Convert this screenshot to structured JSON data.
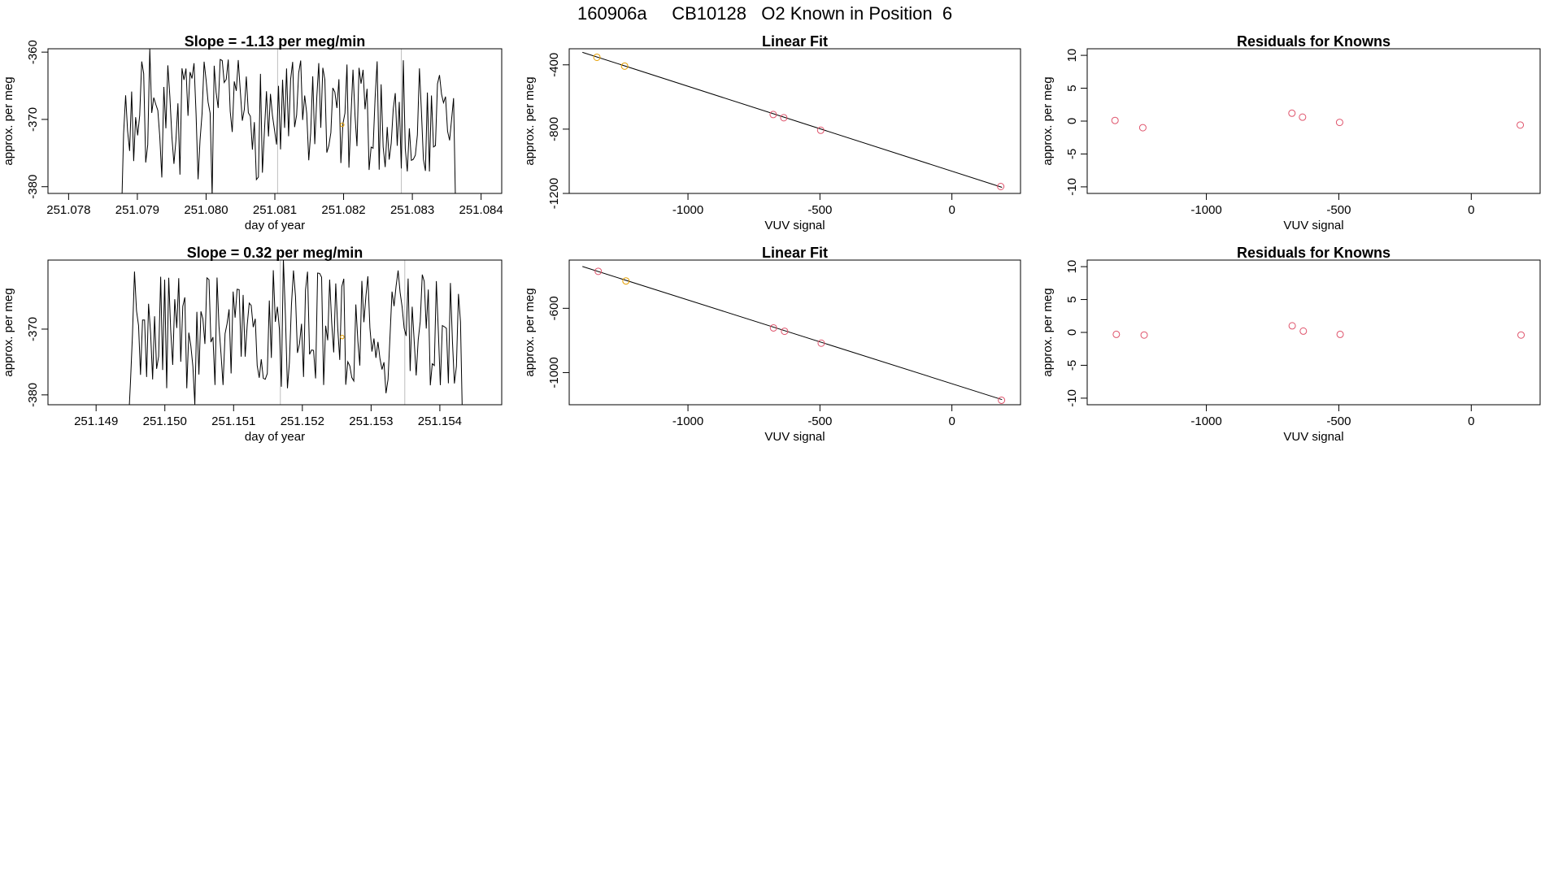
{
  "page_title": "160906a     CB10128   O2 Known in Position  6",
  "colors": {
    "trace": "#000000",
    "frame": "#000000",
    "marker_orange": "#E69F00",
    "marker_red": "#DF536B",
    "vline": "#BEBEBE",
    "fit_line": "#000000"
  },
  "chart_data": [
    {
      "id": "time1",
      "type": "line",
      "title": "Slope =  -1.13  per meg/min",
      "xlabel": "day of year",
      "ylabel": "approx. per meg",
      "xlim": [
        251.0777,
        251.0843
      ],
      "ylim": [
        -381,
        -359.5
      ],
      "xticks": [
        251.078,
        251.079,
        251.08,
        251.081,
        251.082,
        251.083,
        251.084
      ],
      "xtick_labels": [
        "251.078",
        "251.079",
        "251.080",
        "251.081",
        "251.082",
        "251.083",
        "251.084"
      ],
      "yticks": [
        -360,
        -370,
        -380
      ],
      "ytick_labels": [
        "-360",
        "-370",
        "-380"
      ],
      "vlines": [
        251.08104,
        251.08284
      ],
      "highlight_points": [
        {
          "x": 251.08198,
          "y": -370.8
        }
      ],
      "series": [
        {
          "name": "signal",
          "x_start": 251.0788,
          "x_end": 251.0836,
          "seed": 7
        }
      ]
    },
    {
      "id": "fit1",
      "type": "scatter",
      "title": "Linear Fit",
      "xlabel": "VUV signal",
      "ylabel": "approx. per meg",
      "xlim": [
        -1450,
        260
      ],
      "ylim": [
        -1200,
        -300
      ],
      "xticks": [
        -1000,
        -500,
        0
      ],
      "xtick_labels": [
        "-1000",
        "-500",
        "0"
      ],
      "yticks": [
        -400,
        -800,
        -1200
      ],
      "ytick_labels": [
        "-400",
        "-800",
        "-1200"
      ],
      "fit_line": {
        "x": [
          -1400,
          190
        ],
        "y": [
          -322,
          -1162
        ]
      },
      "points": [
        {
          "x": -1345,
          "y": -353,
          "color": "orange"
        },
        {
          "x": -1240,
          "y": -408,
          "color": "orange"
        },
        {
          "x": -677,
          "y": -709,
          "color": "red"
        },
        {
          "x": -637,
          "y": -729,
          "color": "red"
        },
        {
          "x": -497,
          "y": -807,
          "color": "red"
        },
        {
          "x": 185,
          "y": -1157,
          "color": "red"
        }
      ]
    },
    {
      "id": "res1",
      "type": "scatter",
      "title": "Residuals for Knowns",
      "xlabel": "VUV signal",
      "ylabel": "approx. per meg",
      "xlim": [
        -1450,
        260
      ],
      "ylim": [
        -11,
        11
      ],
      "xticks": [
        -1000,
        -500,
        0
      ],
      "xtick_labels": [
        "-1000",
        "-500",
        "0"
      ],
      "yticks": [
        10,
        5,
        0,
        -5,
        -10
      ],
      "ytick_labels": [
        "10",
        "5",
        "0",
        "-5",
        "-10"
      ],
      "points": [
        {
          "x": -1345,
          "y": 0.1
        },
        {
          "x": -1240,
          "y": -1.0
        },
        {
          "x": -677,
          "y": 1.2
        },
        {
          "x": -637,
          "y": 0.6
        },
        {
          "x": -497,
          "y": -0.2
        },
        {
          "x": 185,
          "y": -0.6
        }
      ]
    },
    {
      "id": "time2",
      "type": "line",
      "title": "Slope =  0.32  per meg/min",
      "xlabel": "day of year",
      "ylabel": "approx. per meg",
      "xlim": [
        251.1483,
        251.1549
      ],
      "ylim": [
        -381.5,
        -359.5
      ],
      "xticks": [
        251.149,
        251.15,
        251.151,
        251.152,
        251.153,
        251.154
      ],
      "xtick_labels": [
        "251.149",
        "251.150",
        "251.151",
        "251.152",
        "251.153",
        "251.154"
      ],
      "yticks": [
        -370,
        -380
      ],
      "ytick_labels": [
        "-370",
        "-380"
      ],
      "vlines": [
        251.15168,
        251.15349
      ],
      "highlight_points": [
        {
          "x": 251.15258,
          "y": -371.2
        }
      ],
      "series": [
        {
          "name": "signal",
          "x_start": 251.1495,
          "x_end": 251.1543,
          "seed": 19
        }
      ]
    },
    {
      "id": "fit2",
      "type": "scatter",
      "title": "Linear Fit",
      "xlabel": "VUV signal",
      "ylabel": "approx. per meg",
      "xlim": [
        -1450,
        260
      ],
      "ylim": [
        -1200,
        -300
      ],
      "xticks": [
        -1000,
        -500,
        0
      ],
      "xtick_labels": [
        "-1000",
        "-500",
        "0"
      ],
      "yticks": [
        -600,
        -1000
      ],
      "ytick_labels": [
        "-600",
        "-1000"
      ],
      "fit_line": {
        "x": [
          -1400,
          190
        ],
        "y": [
          -340,
          -1168
        ]
      },
      "points": [
        {
          "x": -1340,
          "y": -370,
          "color": "red"
        },
        {
          "x": -1235,
          "y": -430,
          "color": "orange"
        },
        {
          "x": -676,
          "y": -722,
          "color": "red"
        },
        {
          "x": -634,
          "y": -743,
          "color": "red"
        },
        {
          "x": -495,
          "y": -817,
          "color": "red"
        },
        {
          "x": 188,
          "y": -1172,
          "color": "red"
        }
      ]
    },
    {
      "id": "res2",
      "type": "scatter",
      "title": "Residuals for Knowns",
      "xlabel": "VUV signal",
      "ylabel": "approx. per meg",
      "xlim": [
        -1450,
        260
      ],
      "ylim": [
        -11,
        11
      ],
      "xticks": [
        -1000,
        -500,
        0
      ],
      "xtick_labels": [
        "-1000",
        "-500",
        "0"
      ],
      "yticks": [
        10,
        5,
        0,
        -5,
        -10
      ],
      "ytick_labels": [
        "10",
        "5",
        "0",
        "-5",
        "-10"
      ],
      "points": [
        {
          "x": -1340,
          "y": -0.3
        },
        {
          "x": -1235,
          "y": -0.4
        },
        {
          "x": -676,
          "y": 1.0
        },
        {
          "x": -634,
          "y": 0.2
        },
        {
          "x": -495,
          "y": -0.3
        },
        {
          "x": 188,
          "y": -0.4
        }
      ]
    }
  ]
}
